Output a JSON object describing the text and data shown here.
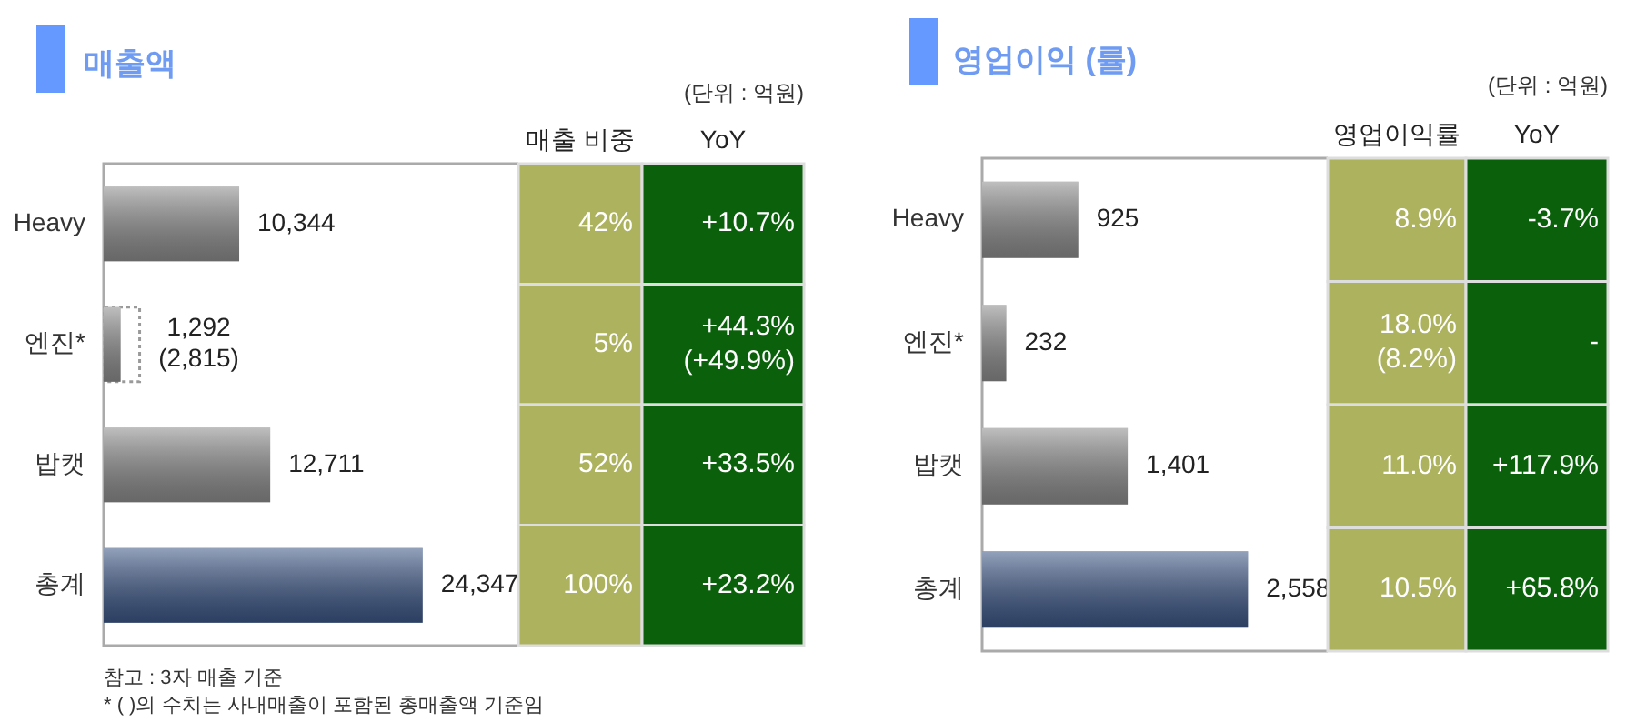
{
  "chart_data": [
    {
      "type": "bar",
      "orientation": "horizontal",
      "title": "매출액",
      "categories": [
        "Heavy",
        "엔진*",
        "밥캣",
        "총계"
      ],
      "series": [
        {
          "colors": [
            "#8a8a8a",
            "#8a8a8a",
            "#8a8a8a",
            "#3b5584"
          ],
          "values": [
            10344,
            1292,
            12711,
            24347
          ],
          "value_labels": [
            "10,344",
            "1,292",
            "12,711",
            "24,347"
          ]
        },
        {
          "color": "#9a9a9a",
          "line_style": "dotted",
          "values": [
            null,
            2815,
            null,
            null
          ],
          "value_labels": [
            null,
            "(2,815)",
            null,
            null
          ]
        }
      ],
      "annotations": [
        "참고 : 3자 매출 기준",
        "* ( )의 수치는 사내매출이 포함된 총매출액 기준임"
      ]
    },
    {
      "type": "other",
      "subtitle": "(단위 : 억원)",
      "categories": [
        "매출 비중",
        "YoY"
      ],
      "colors": [
        "#adb25e",
        "#0b610b"
      ],
      "cell_labels": [
        [
          "42%",
          "+10.7%"
        ],
        [
          "5%",
          "+44.3%\n(+49.9%)"
        ],
        [
          "52%",
          "+33.5%"
        ],
        [
          "100%",
          "+23.2%"
        ]
      ]
    },
    {
      "type": "bar",
      "orientation": "horizontal",
      "title": "영업이익 (률)",
      "categories": [
        "Heavy",
        "엔진*",
        "밥캣",
        "총계"
      ],
      "series": [
        {
          "colors": [
            "#8a8a8a",
            "#8a8a8a",
            "#8a8a8a",
            "#3b5584"
          ],
          "values": [
            925,
            232,
            1401,
            2558
          ],
          "value_labels": [
            "925",
            "232",
            "1,401",
            "2,558"
          ]
        }
      ]
    },
    {
      "type": "other",
      "subtitle": "(단위 : 억원)",
      "categories": [
        "영업이익률",
        "YoY"
      ],
      "colors": [
        "#adb25e",
        "#0b610b"
      ],
      "cell_labels": [
        [
          "8.9%",
          "-3.7%"
        ],
        [
          "18.0%\n(8.2%)",
          "-"
        ],
        [
          "11.0%",
          "+117.9%"
        ],
        [
          "10.5%",
          "+65.8%"
        ]
      ]
    }
  ]
}
